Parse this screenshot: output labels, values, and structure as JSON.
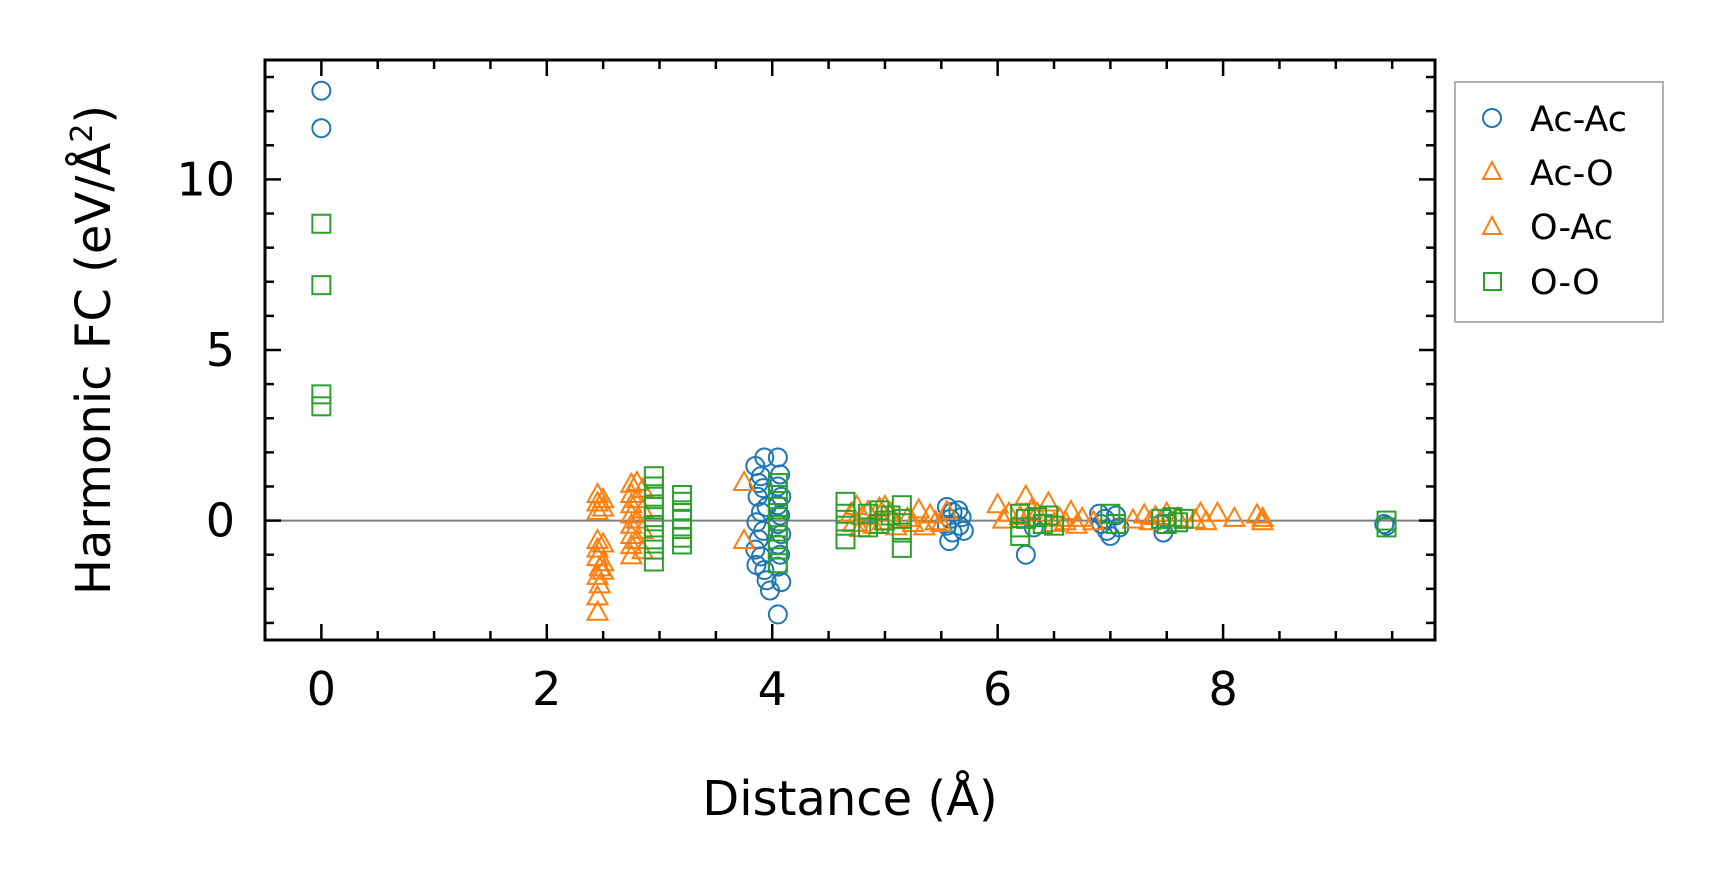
{
  "chart_data": {
    "type": "scatter",
    "title": "",
    "xlabel": "Distance (Å)",
    "ylabel": "Harmonic FC (eV/Å²)",
    "ylabel_parts": {
      "main": "Harmonic FC (eV/Å",
      "sup": "2",
      "close": ")"
    },
    "xlim": [
      -0.5,
      9.88
    ],
    "ylim": [
      -3.5,
      13.5
    ],
    "xticks": [
      0,
      2,
      4,
      6,
      8
    ],
    "yticks": [
      0,
      5,
      10
    ],
    "xminor_step": 0.5,
    "yminor_step": 1,
    "grid": false,
    "legend_position": "outside-right-top",
    "hline": {
      "y": 0,
      "color": "#808080"
    },
    "series": [
      {
        "name": "Ac-Ac",
        "marker": "circle",
        "color": "#1f77b4",
        "points": [
          [
            0,
            12.6
          ],
          [
            0,
            11.5
          ],
          [
            3.85,
            1.6
          ],
          [
            3.9,
            1.3
          ],
          [
            3.93,
            1.85
          ],
          [
            3.88,
            1.1
          ],
          [
            3.92,
            0.95
          ],
          [
            3.87,
            0.7
          ],
          [
            3.95,
            0.4
          ],
          [
            3.9,
            0.25
          ],
          [
            3.86,
            -0.05
          ],
          [
            3.92,
            -0.3
          ],
          [
            3.88,
            -0.55
          ],
          [
            3.85,
            -0.85
          ],
          [
            3.9,
            -1.05
          ],
          [
            3.86,
            -1.3
          ],
          [
            3.93,
            -1.45
          ],
          [
            3.95,
            -1.75
          ],
          [
            3.98,
            -2.05
          ],
          [
            4.05,
            1.85
          ],
          [
            4.07,
            1.35
          ],
          [
            4.05,
            1.0
          ],
          [
            4.08,
            0.7
          ],
          [
            4.05,
            0.45
          ],
          [
            4.07,
            0.15
          ],
          [
            4.05,
            -0.1
          ],
          [
            4.08,
            -0.4
          ],
          [
            4.05,
            -0.7
          ],
          [
            4.07,
            -1.0
          ],
          [
            4.05,
            -1.35
          ],
          [
            4.08,
            -1.8
          ],
          [
            4.05,
            -2.75
          ],
          [
            5.55,
            0.4
          ],
          [
            5.6,
            0.25
          ],
          [
            5.58,
            0.05
          ],
          [
            5.55,
            -0.15
          ],
          [
            5.6,
            -0.35
          ],
          [
            5.57,
            -0.6
          ],
          [
            5.65,
            0.3
          ],
          [
            5.68,
            0.1
          ],
          [
            5.66,
            -0.15
          ],
          [
            5.7,
            -0.3
          ],
          [
            6.25,
            -1.0
          ],
          [
            6.3,
            0.1
          ],
          [
            6.32,
            -0.2
          ],
          [
            6.9,
            0.2
          ],
          [
            6.95,
            0.05
          ],
          [
            6.92,
            -0.1
          ],
          [
            6.97,
            -0.3
          ],
          [
            7.0,
            -0.45
          ],
          [
            7.05,
            0.15
          ],
          [
            7.08,
            -0.2
          ],
          [
            7.45,
            -0.1
          ],
          [
            7.47,
            -0.35
          ],
          [
            7.5,
            0.05
          ],
          [
            9.43,
            -0.1
          ],
          [
            9.45,
            -0.15
          ]
        ]
      },
      {
        "name": "Ac-O",
        "marker": "triangle",
        "color": "#ff7f0e",
        "points": [
          [
            2.45,
            0.75
          ],
          [
            2.45,
            0.5
          ],
          [
            2.45,
            0.25
          ],
          [
            2.45,
            -0.6
          ],
          [
            2.45,
            -0.85
          ],
          [
            2.45,
            -1.1
          ],
          [
            2.47,
            -1.4
          ],
          [
            2.45,
            -1.65
          ],
          [
            2.47,
            -1.9
          ],
          [
            2.45,
            -2.25
          ],
          [
            2.45,
            -2.7
          ],
          [
            2.75,
            1.05
          ],
          [
            2.75,
            0.75
          ],
          [
            2.75,
            0.45
          ],
          [
            2.75,
            0.15
          ],
          [
            2.75,
            -0.15
          ],
          [
            2.75,
            -0.45
          ],
          [
            2.75,
            -0.75
          ],
          [
            2.75,
            -1.05
          ],
          [
            2.85,
            0.9
          ],
          [
            2.85,
            0.3
          ],
          [
            2.85,
            -0.3
          ],
          [
            2.85,
            -0.9
          ],
          [
            3.75,
            1.1
          ],
          [
            3.75,
            -0.6
          ],
          [
            4.75,
            0.4
          ],
          [
            4.8,
            0.1
          ],
          [
            4.78,
            -0.25
          ],
          [
            4.95,
            0.35
          ],
          [
            4.98,
            -0.05
          ],
          [
            5.3,
            0.3
          ],
          [
            5.35,
            -0.2
          ],
          [
            5.55,
            0.25
          ],
          [
            5.5,
            -0.1
          ],
          [
            6.0,
            0.45
          ],
          [
            6.05,
            0.0
          ],
          [
            6.25,
            0.7
          ],
          [
            6.3,
            0.3
          ],
          [
            6.45,
            0.5
          ],
          [
            6.5,
            -0.1
          ],
          [
            6.65,
            0.25
          ],
          [
            6.7,
            -0.15
          ],
          [
            7.3,
            0.15
          ],
          [
            7.4,
            0.1
          ],
          [
            7.5,
            0.2
          ],
          [
            7.8,
            0.2
          ],
          [
            7.95,
            0.2
          ],
          [
            8.3,
            0.15
          ],
          [
            8.35,
            0.05
          ]
        ]
      },
      {
        "name": "O-Ac",
        "marker": "triangle",
        "color": "#ff7f0e",
        "points": [
          [
            2.5,
            0.6
          ],
          [
            2.5,
            0.35
          ],
          [
            2.5,
            -0.7
          ],
          [
            2.5,
            -1.25
          ],
          [
            2.5,
            -1.5
          ],
          [
            2.8,
            1.1
          ],
          [
            2.8,
            0.6
          ],
          [
            2.8,
            0.0
          ],
          [
            2.8,
            -0.6
          ],
          [
            4.7,
            0.2
          ],
          [
            4.72,
            -0.1
          ],
          [
            4.85,
            0.25
          ],
          [
            4.9,
            -0.15
          ],
          [
            5.0,
            0.4
          ],
          [
            5.05,
            0.2
          ],
          [
            5.1,
            -0.2
          ],
          [
            5.2,
            0.05
          ],
          [
            5.25,
            -0.1
          ],
          [
            5.4,
            0.15
          ],
          [
            5.45,
            -0.05
          ],
          [
            6.1,
            0.2
          ],
          [
            6.2,
            0.1
          ],
          [
            6.35,
            0.2
          ],
          [
            6.55,
            0.05
          ],
          [
            6.6,
            -0.05
          ],
          [
            6.75,
            0.05
          ],
          [
            6.85,
            -0.05
          ],
          [
            7.2,
            0.0
          ],
          [
            7.35,
            -0.05
          ],
          [
            7.6,
            0.05
          ],
          [
            7.75,
            0.0
          ],
          [
            7.85,
            -0.05
          ],
          [
            8.1,
            0.05
          ],
          [
            8.35,
            -0.05
          ]
        ]
      },
      {
        "name": "O-O",
        "marker": "square",
        "color": "#2ca02c",
        "points": [
          [
            0,
            8.7
          ],
          [
            0,
            6.9
          ],
          [
            0,
            3.7
          ],
          [
            0,
            3.35
          ],
          [
            2.95,
            1.3
          ],
          [
            2.95,
            1.0
          ],
          [
            2.95,
            0.7
          ],
          [
            2.95,
            0.4
          ],
          [
            2.95,
            0.1
          ],
          [
            2.95,
            -0.2
          ],
          [
            2.95,
            -0.55
          ],
          [
            2.95,
            -0.85
          ],
          [
            2.95,
            -1.2
          ],
          [
            3.2,
            0.75
          ],
          [
            3.2,
            0.55
          ],
          [
            3.2,
            0.3
          ],
          [
            3.2,
            0.05
          ],
          [
            3.2,
            -0.25
          ],
          [
            3.2,
            -0.5
          ],
          [
            3.2,
            -0.7
          ],
          [
            4.05,
            1.1
          ],
          [
            4.05,
            0.75
          ],
          [
            4.05,
            0.4
          ],
          [
            4.05,
            0.1
          ],
          [
            4.05,
            -0.2
          ],
          [
            4.05,
            -0.55
          ],
          [
            4.05,
            -0.85
          ],
          [
            4.05,
            -1.25
          ],
          [
            4.65,
            0.55
          ],
          [
            4.65,
            0.2
          ],
          [
            4.65,
            -0.15
          ],
          [
            4.65,
            -0.55
          ],
          [
            4.85,
            0.2
          ],
          [
            4.85,
            -0.2
          ],
          [
            4.95,
            0.3
          ],
          [
            4.95,
            -0.1
          ],
          [
            5.0,
            0.0
          ],
          [
            5.05,
            0.15
          ],
          [
            5.15,
            0.45
          ],
          [
            5.15,
            0.05
          ],
          [
            5.15,
            -0.35
          ],
          [
            5.15,
            -0.8
          ],
          [
            6.2,
            0.2
          ],
          [
            6.2,
            -0.2
          ],
          [
            6.2,
            -0.45
          ],
          [
            6.25,
            0.05
          ],
          [
            6.35,
            0.1
          ],
          [
            6.4,
            -0.1
          ],
          [
            6.45,
            0.15
          ],
          [
            6.5,
            -0.15
          ],
          [
            7.0,
            0.2
          ],
          [
            7.05,
            -0.1
          ],
          [
            7.45,
            0.05
          ],
          [
            7.5,
            -0.1
          ],
          [
            7.55,
            0.1
          ],
          [
            7.6,
            -0.05
          ],
          [
            7.65,
            0.05
          ],
          [
            9.45,
            0.0
          ],
          [
            9.45,
            -0.2
          ]
        ]
      }
    ]
  }
}
